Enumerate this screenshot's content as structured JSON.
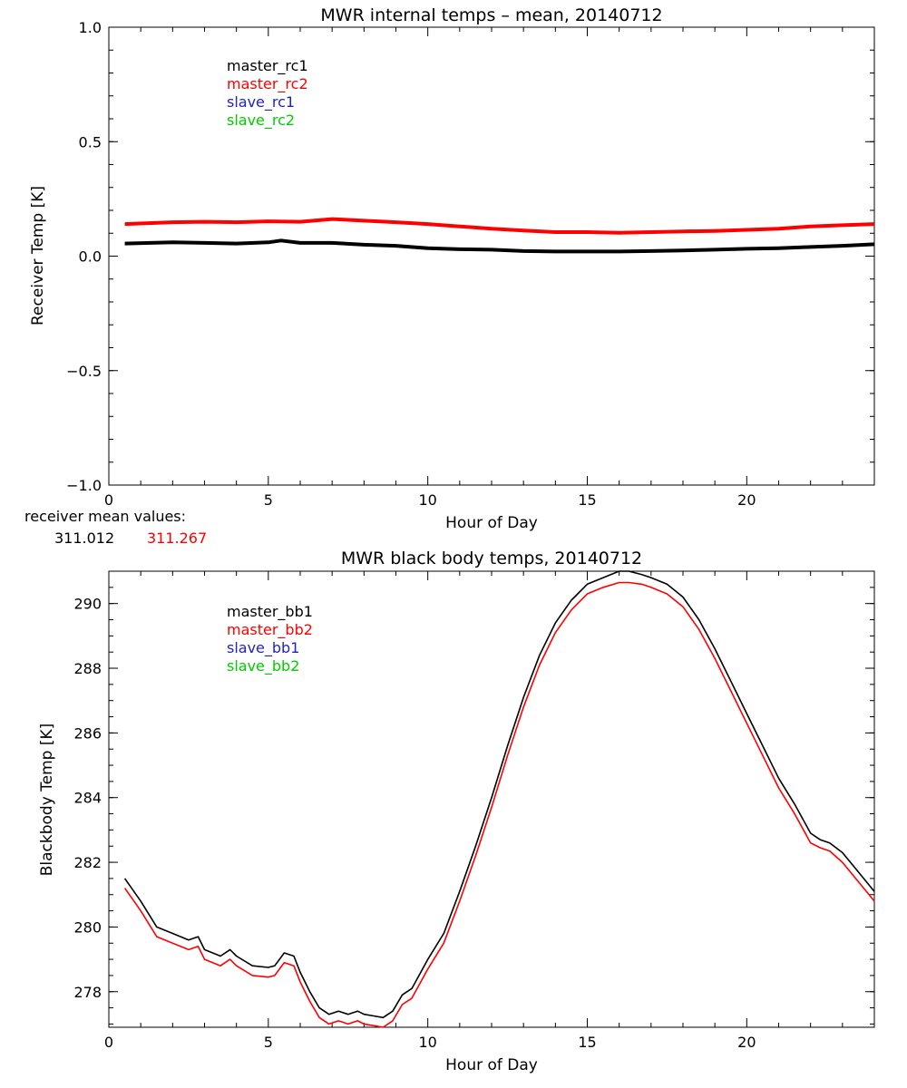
{
  "chart_data": [
    {
      "type": "line",
      "title": "MWR internal temps – mean, 20140712",
      "xlabel": "Hour of Day",
      "ylabel": "Receiver Temp [K]",
      "xlim": [
        0,
        24
      ],
      "ylim": [
        -1.0,
        1.0
      ],
      "xticks": [
        0,
        5,
        10,
        15,
        20
      ],
      "yticks": [
        -1.0,
        -0.5,
        0.0,
        0.5,
        1.0
      ],
      "ytick_labels": [
        "−1.0",
        "−0.5",
        "0.0",
        "0.5",
        "1.0"
      ],
      "grid": false,
      "legend_position": "top-left",
      "series": [
        {
          "name": "master_rc1",
          "color": "#000000",
          "x": [
            0.5,
            2,
            3,
            4,
            5,
            5.4,
            6,
            7,
            8,
            9,
            10,
            11,
            12,
            13,
            14,
            15,
            16,
            17,
            18,
            19,
            20,
            21,
            22,
            23,
            24
          ],
          "values": [
            0.055,
            0.06,
            0.058,
            0.055,
            0.06,
            0.068,
            0.058,
            0.058,
            0.05,
            0.045,
            0.035,
            0.03,
            0.028,
            0.022,
            0.02,
            0.02,
            0.02,
            0.022,
            0.025,
            0.028,
            0.032,
            0.035,
            0.04,
            0.045,
            0.052
          ]
        },
        {
          "name": "master_rc2",
          "color": "#ff0000",
          "x": [
            0.5,
            2,
            3,
            4,
            5,
            6,
            7,
            8,
            9,
            10,
            11,
            12,
            13,
            14,
            15,
            16,
            17,
            18,
            19,
            20,
            21,
            22,
            23,
            24
          ],
          "values": [
            0.14,
            0.148,
            0.15,
            0.148,
            0.152,
            0.15,
            0.162,
            0.155,
            0.148,
            0.14,
            0.13,
            0.12,
            0.112,
            0.105,
            0.105,
            0.102,
            0.105,
            0.108,
            0.11,
            0.115,
            0.12,
            0.13,
            0.135,
            0.14
          ]
        },
        {
          "name": "slave_rc1",
          "color": "#2222cc",
          "x": [],
          "values": []
        },
        {
          "name": "slave_rc2",
          "color": "#00cc00",
          "x": [],
          "values": []
        }
      ],
      "annotation": {
        "label": "receiver mean values:",
        "values": [
          {
            "text": "311.012",
            "color": "#000000"
          },
          {
            "text": "311.267",
            "color": "#ff0000"
          }
        ]
      }
    },
    {
      "type": "line",
      "title": "MWR black body temps, 20140712",
      "xlabel": "Hour of Day",
      "ylabel": "Blackbody Temp [K]",
      "xlim": [
        0,
        24
      ],
      "ylim": [
        276.9,
        291.0
      ],
      "xticks": [
        0,
        5,
        10,
        15,
        20
      ],
      "yticks": [
        278,
        280,
        282,
        284,
        286,
        288,
        290
      ],
      "ytick_labels": [
        "278",
        "280",
        "282",
        "284",
        "286",
        "288",
        "290"
      ],
      "grid": false,
      "legend_position": "top-left",
      "series": [
        {
          "name": "master_bb1",
          "color": "#000000",
          "x": [
            0.5,
            1,
            1.5,
            2,
            2.5,
            2.8,
            3,
            3.5,
            3.8,
            4,
            4.5,
            5,
            5.2,
            5.5,
            5.8,
            6,
            6.3,
            6.6,
            6.9,
            7.2,
            7.5,
            7.8,
            8,
            8.3,
            8.6,
            8.9,
            9.2,
            9.5,
            10,
            10.5,
            11,
            11.5,
            12,
            12.5,
            13,
            13.5,
            14,
            14.5,
            15,
            15.5,
            16,
            16.3,
            16.7,
            17,
            17.5,
            18,
            18.5,
            19,
            19.5,
            20,
            20.5,
            21,
            21.5,
            22,
            22.3,
            22.6,
            23,
            23.5,
            24
          ],
          "values": [
            281.5,
            280.8,
            280.0,
            279.8,
            279.6,
            279.7,
            279.3,
            279.1,
            279.3,
            279.1,
            278.8,
            278.75,
            278.8,
            279.2,
            279.1,
            278.6,
            278.0,
            277.5,
            277.3,
            277.4,
            277.3,
            277.4,
            277.3,
            277.25,
            277.2,
            277.4,
            277.9,
            278.1,
            279.0,
            279.8,
            281.1,
            282.5,
            284.0,
            285.6,
            287.1,
            288.4,
            289.4,
            290.1,
            290.6,
            290.8,
            291.0,
            291.0,
            290.9,
            290.8,
            290.6,
            290.2,
            289.5,
            288.6,
            287.6,
            286.6,
            285.6,
            284.6,
            283.8,
            282.9,
            282.7,
            282.6,
            282.3,
            281.7,
            281.1
          ]
        },
        {
          "name": "master_bb2",
          "color": "#ff0000",
          "x": [
            0.5,
            1,
            1.5,
            2,
            2.5,
            2.8,
            3,
            3.5,
            3.8,
            4,
            4.5,
            5,
            5.2,
            5.5,
            5.8,
            6,
            6.3,
            6.6,
            6.9,
            7.2,
            7.5,
            7.8,
            8,
            8.3,
            8.6,
            8.9,
            9.2,
            9.5,
            10,
            10.5,
            11,
            11.5,
            12,
            12.5,
            13,
            13.5,
            14,
            14.5,
            15,
            15.5,
            16,
            16.3,
            16.7,
            17,
            17.5,
            18,
            18.5,
            19,
            19.5,
            20,
            20.5,
            21,
            21.5,
            22,
            22.3,
            22.6,
            23,
            23.5,
            24
          ],
          "values": [
            281.2,
            280.5,
            279.7,
            279.5,
            279.3,
            279.4,
            279.0,
            278.8,
            279.0,
            278.8,
            278.5,
            278.45,
            278.5,
            278.9,
            278.8,
            278.3,
            277.7,
            277.2,
            277.0,
            277.1,
            277.0,
            277.1,
            277.0,
            276.95,
            276.9,
            277.1,
            277.6,
            277.8,
            278.7,
            279.5,
            280.8,
            282.2,
            283.7,
            285.3,
            286.8,
            288.1,
            289.1,
            289.8,
            290.3,
            290.5,
            290.65,
            290.65,
            290.6,
            290.5,
            290.3,
            289.9,
            289.2,
            288.3,
            287.3,
            286.3,
            285.3,
            284.3,
            283.5,
            282.6,
            282.45,
            282.35,
            282.0,
            281.4,
            280.8
          ]
        },
        {
          "name": "slave_bb1",
          "color": "#2222cc",
          "x": [],
          "values": []
        },
        {
          "name": "slave_bb2",
          "color": "#00cc00",
          "x": [],
          "values": []
        }
      ]
    }
  ]
}
